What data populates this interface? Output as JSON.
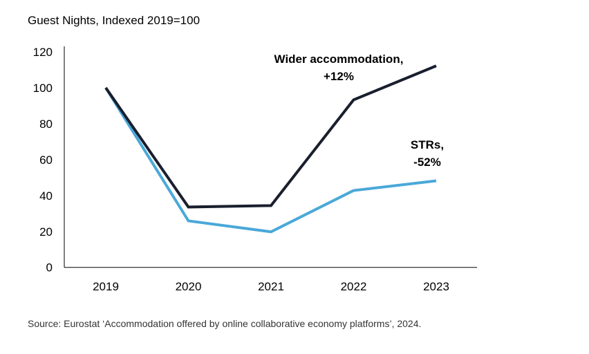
{
  "chart_data": {
    "type": "line",
    "title": "Guest Nights, Indexed 2019=100",
    "categories": [
      "2019",
      "2020",
      "2021",
      "2022",
      "2023"
    ],
    "ylim": [
      0,
      120
    ],
    "yticks": [
      0,
      20,
      40,
      60,
      80,
      100,
      120
    ],
    "grid": false,
    "series": [
      {
        "name": "Wider accommodation, +12%",
        "label_lines": [
          "Wider accommodation,",
          "+12%"
        ],
        "color": "#1a1f2e",
        "values": [
          100,
          33.6,
          34.4,
          93.3,
          112.2
        ]
      },
      {
        "name": "STRs, -52%",
        "label_lines": [
          "STRs,",
          "-52%"
        ],
        "color": "#4aa8d8",
        "values": [
          100,
          25.9,
          19.8,
          42.8,
          48.2
        ]
      }
    ]
  },
  "source": "Source: Eurostat ‘Accommodation offered by online collaborative economy platforms’, 2024."
}
